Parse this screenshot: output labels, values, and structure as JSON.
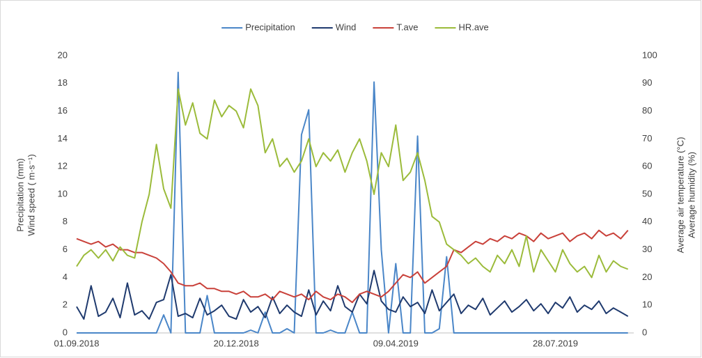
{
  "chart_data": {
    "type": "line",
    "y_label": [
      "Precipitation (mm)",
      "Wind speed ( m·s⁻¹)"
    ],
    "y2_label": [
      "Average air temperature (°C)",
      "Average humidity (%)"
    ],
    "x": [
      "01.09.2018",
      "06.09.2018",
      "11.09.2018",
      "16.09.2018",
      "21.09.2018",
      "26.09.2018",
      "01.10.2018",
      "06.10.2018",
      "11.10.2018",
      "16.10.2018",
      "21.10.2018",
      "26.10.2018",
      "31.10.2018",
      "05.11.2018",
      "10.11.2018",
      "15.11.2018",
      "20.11.2018",
      "25.11.2018",
      "30.11.2018",
      "05.12.2018",
      "10.12.2018",
      "15.12.2018",
      "20.12.2018",
      "25.12.2018",
      "30.12.2018",
      "04.01.2019",
      "09.01.2019",
      "14.01.2019",
      "19.01.2019",
      "24.01.2019",
      "29.01.2019",
      "03.02.2019",
      "08.02.2019",
      "13.02.2019",
      "18.02.2019",
      "23.02.2019",
      "28.02.2019",
      "05.03.2019",
      "10.03.2019",
      "15.03.2019",
      "20.03.2019",
      "25.03.2019",
      "30.03.2019",
      "04.04.2019",
      "09.04.2019",
      "14.04.2019",
      "19.04.2019",
      "24.04.2019",
      "29.04.2019",
      "04.05.2019",
      "09.05.2019",
      "14.05.2019",
      "19.05.2019",
      "24.05.2019",
      "29.05.2019",
      "03.06.2019",
      "08.06.2019",
      "13.06.2019",
      "18.06.2019",
      "23.06.2019",
      "28.06.2019",
      "03.07.2019",
      "08.07.2019",
      "13.07.2019",
      "18.07.2019",
      "23.07.2019",
      "28.07.2019",
      "02.08.2019",
      "07.08.2019",
      "12.08.2019",
      "17.08.2019",
      "22.08.2019",
      "27.08.2019",
      "01.09.2019",
      "06.09.2019",
      "11.09.2019",
      "16.09.2019"
    ],
    "series": [
      {
        "name": "Precipitation",
        "color": "#4a86c8",
        "values": [
          0,
          0,
          0,
          0,
          0,
          0,
          0,
          0,
          0,
          0,
          0,
          0,
          1.3,
          0,
          18.8,
          0,
          0,
          0,
          2.7,
          0,
          0,
          0,
          0,
          0,
          0.2,
          0,
          1.5,
          0,
          0,
          0.3,
          0,
          14.3,
          16.1,
          0,
          0,
          0.2,
          0,
          0,
          1.5,
          0,
          0,
          18.1,
          6.0,
          0,
          5.0,
          0,
          0,
          14.2,
          0,
          0,
          0.3,
          5.5,
          0,
          0,
          0,
          0,
          0,
          0,
          0,
          0,
          0,
          0,
          0,
          0,
          0,
          0,
          0,
          0,
          0,
          0,
          0,
          0,
          0,
          0,
          0,
          0,
          0
        ]
      },
      {
        "name": "Wind",
        "color": "#1f3a6e",
        "values": [
          1.9,
          1.0,
          3.4,
          1.2,
          1.5,
          2.5,
          1.1,
          3.6,
          1.3,
          1.6,
          1.0,
          2.2,
          2.4,
          4.2,
          1.2,
          1.4,
          1.1,
          2.5,
          1.3,
          1.6,
          2.0,
          1.2,
          1.0,
          2.4,
          1.5,
          1.9,
          1.1,
          2.6,
          1.4,
          2.0,
          1.5,
          1.2,
          3.1,
          1.3,
          2.3,
          1.6,
          3.4,
          1.9,
          1.5,
          2.8,
          2.1,
          4.5,
          2.3,
          1.7,
          1.5,
          2.6,
          1.9,
          2.2,
          1.4,
          3.1,
          1.6,
          2.2,
          2.8,
          1.4,
          2.0,
          1.7,
          2.5,
          1.3,
          1.8,
          2.3,
          1.5,
          1.9,
          2.4,
          1.6,
          2.1,
          1.4,
          2.2,
          1.8,
          2.6,
          1.5,
          2.0,
          1.7,
          2.3,
          1.4,
          1.8,
          1.5,
          1.2
        ]
      },
      {
        "name": "T.ave",
        "color": "#c9413a",
        "axis": "y2",
        "values": [
          34,
          33,
          32,
          33,
          31,
          32,
          30,
          30,
          29,
          29,
          28,
          27,
          25,
          22,
          18,
          17,
          17,
          18,
          16,
          16,
          15,
          15,
          14,
          15,
          13,
          13,
          14,
          12,
          15,
          14,
          13,
          14,
          12,
          15,
          13,
          12,
          14,
          13,
          11,
          14,
          15,
          14,
          13,
          15,
          18,
          21,
          20,
          22,
          18,
          20,
          22,
          24,
          30,
          29,
          31,
          33,
          32,
          34,
          33,
          35,
          34,
          36,
          35,
          33,
          36,
          34,
          35,
          36,
          33,
          35,
          36,
          34,
          37,
          35,
          36,
          34,
          37
        ]
      },
      {
        "name": "HR.ave",
        "color": "#9bbb3a",
        "axis": "y2",
        "values": [
          24,
          28,
          30,
          27,
          30,
          26,
          31,
          28,
          27,
          40,
          50,
          68,
          52,
          45,
          88,
          75,
          83,
          72,
          70,
          84,
          78,
          82,
          80,
          74,
          88,
          82,
          65,
          70,
          60,
          63,
          58,
          62,
          70,
          60,
          65,
          62,
          66,
          58,
          65,
          70,
          62,
          50,
          65,
          60,
          75,
          55,
          58,
          65,
          55,
          42,
          40,
          32,
          30,
          28,
          25,
          27,
          24,
          22,
          28,
          25,
          30,
          24,
          35,
          22,
          30,
          26,
          22,
          30,
          25,
          22,
          24,
          20,
          28,
          22,
          26,
          24,
          23
        ]
      }
    ],
    "xlim": [
      "01.09.2018",
      "20.09.2019"
    ],
    "xticks": [
      "01.09.2018",
      "20.12.2018",
      "09.04.2019",
      "28.07.2019"
    ],
    "ylim": [
      0,
      20
    ],
    "yticks": [
      0,
      2,
      4,
      6,
      8,
      10,
      12,
      14,
      16,
      18,
      20
    ],
    "y2lim": [
      0,
      100
    ],
    "y2ticks": [
      0,
      10,
      20,
      30,
      40,
      50,
      60,
      70,
      80,
      90,
      100
    ],
    "legend": "top"
  }
}
